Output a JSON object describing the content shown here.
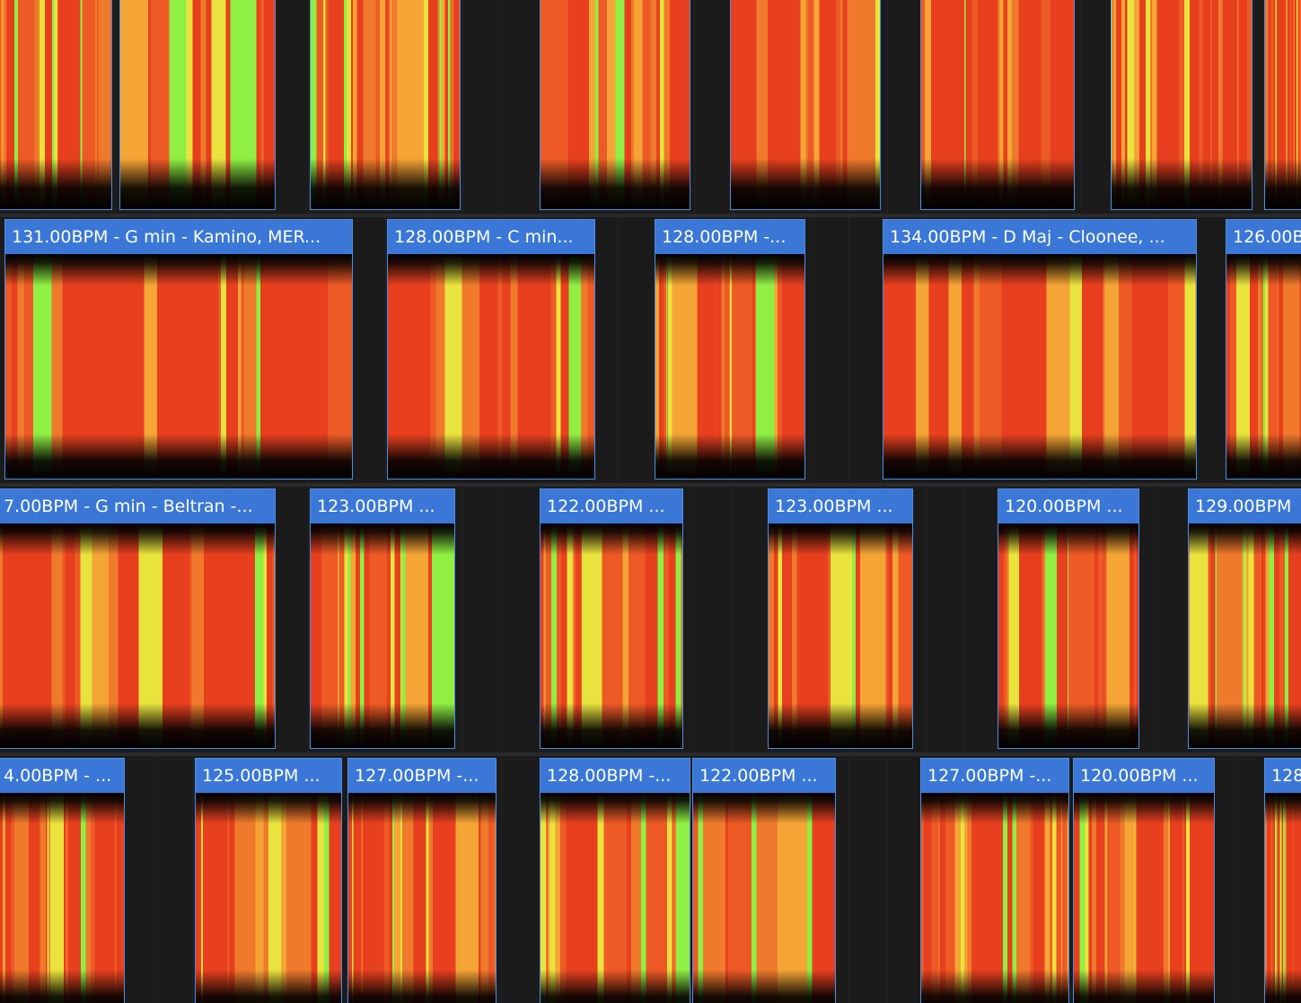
{
  "tracks": [
    {
      "clips": [
        {
          "label": "131.00BPM - G min - Kamino, MER..."
        },
        {
          "label": "128.00BPM - C min..."
        },
        {
          "label": "128.00BPM -..."
        },
        {
          "label": "134.00BPM - D Maj - Cloonee, ..."
        },
        {
          "label": "126.00B"
        }
      ]
    },
    {
      "clips": [
        {
          "label": "7.00BPM - G min - Beltran -..."
        },
        {
          "label": "123.00BPM ..."
        },
        {
          "label": "122.00BPM ..."
        },
        {
          "label": "123.00BPM ..."
        },
        {
          "label": "120.00BPM ..."
        },
        {
          "label": "129.00BPM"
        }
      ]
    },
    {
      "clips": [
        {
          "label": "4.00BPM - ..."
        },
        {
          "label": "125.00BPM ..."
        },
        {
          "label": "127.00BPM -..."
        },
        {
          "label": "128.00BPM -..."
        },
        {
          "label": "122.00BPM ..."
        },
        {
          "label": "127.00BPM -..."
        },
        {
          "label": "120.00BPM ..."
        },
        {
          "label": "128"
        }
      ]
    }
  ]
}
